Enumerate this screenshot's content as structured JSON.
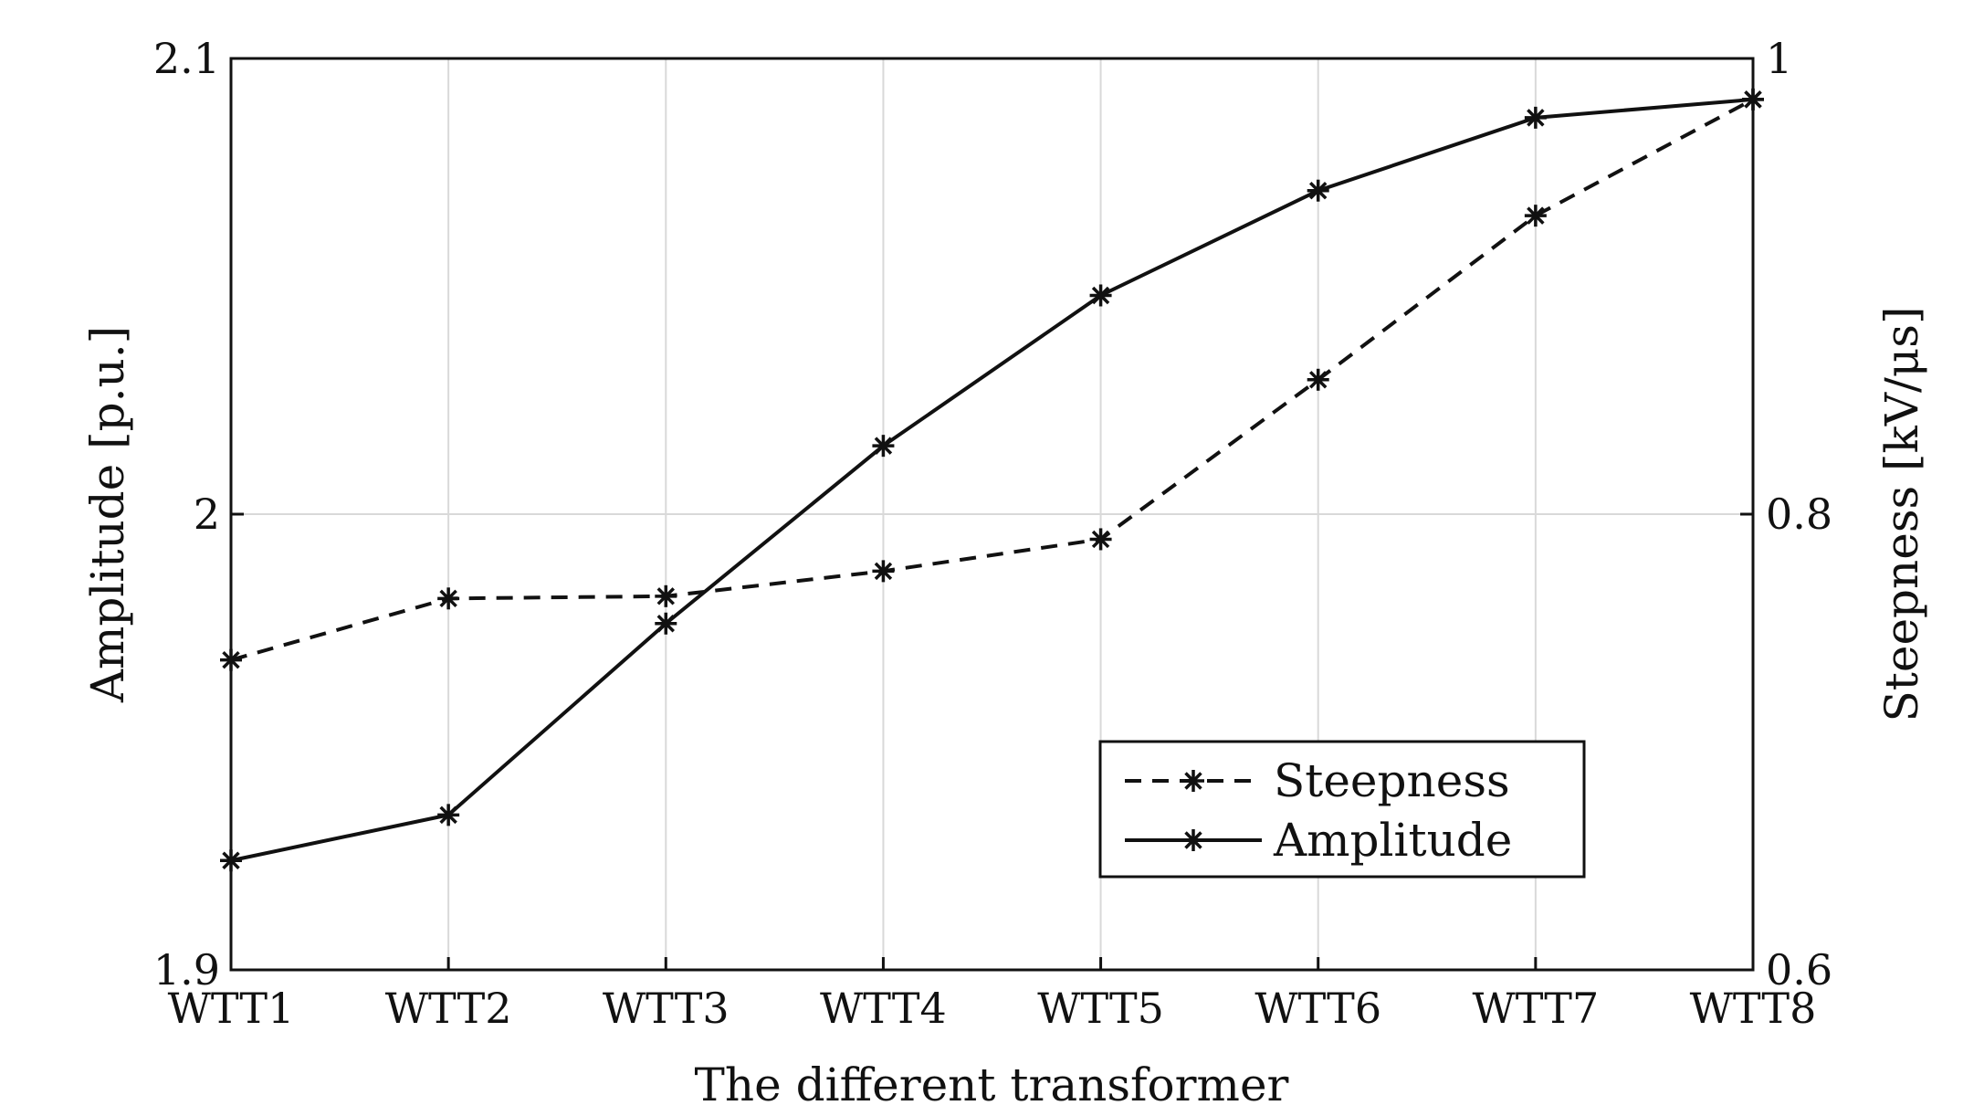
{
  "chart_data": {
    "type": "line",
    "xlabel": "The different transformer",
    "ylabel_left": "Amplitude [p.u.]",
    "ylabel_right": "Steepness [kV/μs]",
    "categories": [
      "WTT1",
      "WTT2",
      "WTT3",
      "WTT4",
      "WTT5",
      "WTT6",
      "WTT7",
      "WTT8"
    ],
    "ylim_left": [
      1.9,
      2.1
    ],
    "ylim_right": [
      0.6,
      1.0
    ],
    "yticks_left": [
      "1.9",
      "2",
      "2.1"
    ],
    "yticks_right": [
      "0.6",
      "0.8",
      "1"
    ],
    "grid": true,
    "legend_position": "lower-right",
    "series": [
      {
        "name": "Steepness",
        "axis": "right",
        "linestyle": "dashed",
        "marker": "asterisk",
        "values": [
          0.736,
          0.763,
          0.764,
          0.775,
          0.789,
          0.859,
          0.931,
          0.982
        ]
      },
      {
        "name": "Amplitude",
        "axis": "left",
        "linestyle": "solid",
        "marker": "asterisk",
        "values": [
          1.924,
          1.934,
          1.976,
          2.015,
          2.048,
          2.071,
          2.087,
          2.091
        ]
      }
    ],
    "color": "#111111"
  }
}
